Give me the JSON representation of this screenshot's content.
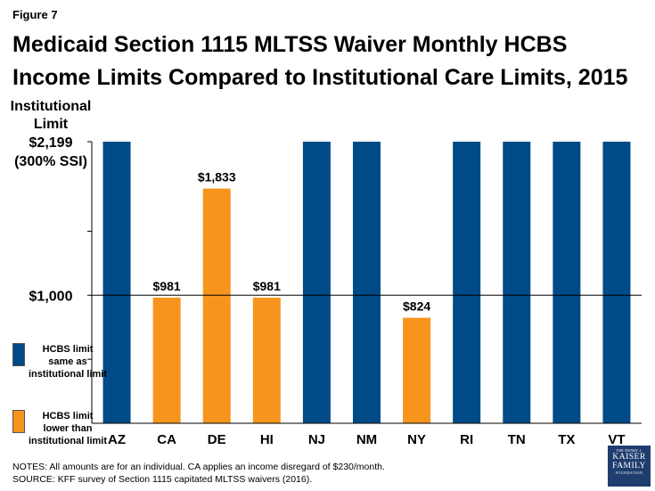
{
  "figure_label": "Figure 7",
  "title_lines": [
    "Medicaid Section 1115 MLTSS Waiver Monthly HCBS",
    "Income Limits Compared to Institutional Care Limits, 2015"
  ],
  "colors": {
    "same": "#004b87",
    "lower": "#f7941d",
    "axis": "#000000"
  },
  "legend": {
    "same": "HCBS limit same as institutional limit",
    "lower": "HCBS limit lower than institutional limit"
  },
  "notes": {
    "line1": "NOTES:  All amounts are for an individual. CA applies an income disregard of $230/month.",
    "line2": "SOURCE: KFF survey of Section 1115 capitated MLTSS waivers (2016)."
  },
  "logo": {
    "line1": "THE HENRY J.",
    "line2": "KAISER",
    "line3": "FAMILY",
    "line4": "FOUNDATION"
  },
  "chart_data": {
    "type": "bar",
    "title": "Medicaid Section 1115 MLTSS Waiver Monthly HCBS Income Limits Compared to Institutional Care Limits, 2015",
    "ylabel": [
      "Institutional",
      "Limit"
    ],
    "ylim": [
      0,
      2199
    ],
    "yticks": [
      500,
      1000,
      1500,
      2199
    ],
    "y_tick_labels": [
      {
        "value": 1000,
        "label": "$1,000"
      },
      {
        "value": 2199,
        "label": "$2,199",
        "sublabel": "(300% SSI)"
      }
    ],
    "reference_line": 1000,
    "grid": false,
    "categories": [
      "AZ",
      "CA",
      "DE",
      "HI",
      "NJ",
      "NM",
      "NY",
      "RI",
      "TN",
      "TX",
      "VT"
    ],
    "values": [
      2199,
      981,
      1833,
      981,
      2199,
      2199,
      824,
      2199,
      2199,
      2199,
      2199
    ],
    "groups": [
      "same",
      "lower",
      "lower",
      "lower",
      "same",
      "same",
      "lower",
      "same",
      "same",
      "same",
      "same"
    ],
    "data_labels": [
      "",
      "$981",
      "$1,833",
      "$981",
      "",
      "",
      "$824",
      "",
      "",
      "",
      ""
    ]
  }
}
